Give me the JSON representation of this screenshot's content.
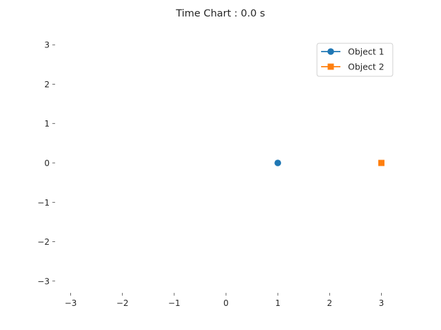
{
  "chart_data": {
    "type": "scatter",
    "title": "Time Chart : 0.0 s",
    "xlabel": "",
    "ylabel": "",
    "xlim": [
      -3.3,
      3.3
    ],
    "ylim": [
      -3.3,
      3.3
    ],
    "xticks": [
      -3,
      -2,
      -1,
      0,
      1,
      2,
      3
    ],
    "yticks": [
      -3,
      -2,
      -1,
      0,
      1,
      2,
      3
    ],
    "xtick_labels": [
      "−3",
      "−2",
      "−1",
      "0",
      "1",
      "2",
      "3"
    ],
    "ytick_labels": [
      "−3",
      "−2",
      "−1",
      "0",
      "1",
      "2",
      "3"
    ],
    "grid": false,
    "legend_position": "top-right",
    "series": [
      {
        "name": "Object 1",
        "marker": "circle",
        "color": "#1f77b4",
        "points": [
          {
            "x": 1,
            "y": 0
          }
        ]
      },
      {
        "name": "Object 2",
        "marker": "square",
        "color": "#ff7f0e",
        "points": [
          {
            "x": 3,
            "y": 0
          }
        ]
      }
    ]
  }
}
